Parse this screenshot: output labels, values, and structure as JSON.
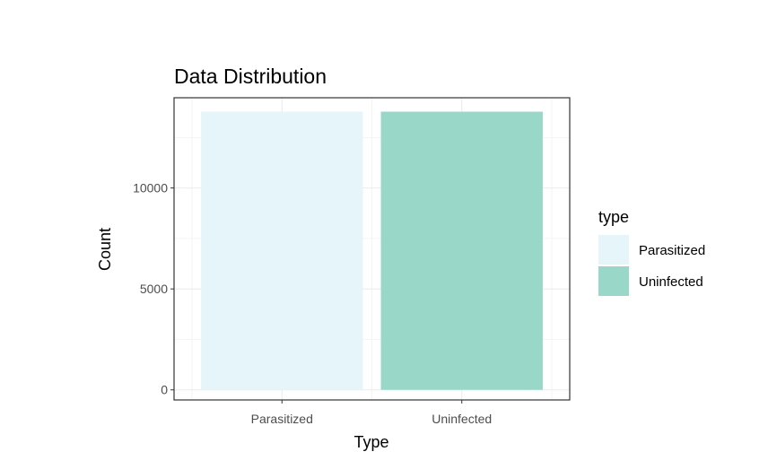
{
  "chart_data": {
    "type": "bar",
    "title": "Data Distribution",
    "xlabel": "Type",
    "ylabel": "Count",
    "categories": [
      "Parasitized",
      "Uninfected"
    ],
    "values": [
      13780,
      13780
    ],
    "colors": [
      "#e5f5f9",
      "#99d8c9"
    ],
    "ylim": [
      -500,
      14470
    ],
    "yticks": [
      0,
      5000,
      10000
    ],
    "ytick_labels": [
      "0",
      "5000",
      "10000"
    ],
    "grid": true,
    "legend": {
      "title": "type",
      "position": "right",
      "entries": [
        "Parasitized",
        "Uninfected"
      ]
    }
  }
}
